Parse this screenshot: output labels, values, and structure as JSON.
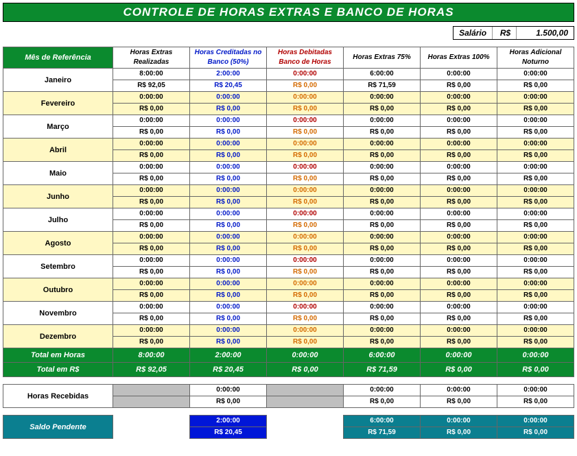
{
  "title": "CONTROLE DE HORAS EXTRAS E BANCO DE HORAS",
  "salary": {
    "label": "Salário",
    "currency": "R$",
    "value": "1.500,00"
  },
  "headers": {
    "ref": "Mês de Referência",
    "cols": [
      {
        "l1": "Horas Extras",
        "l2": "Realizadas",
        "color": "black"
      },
      {
        "l1": "Horas Creditadas no",
        "l2": "Banco (50%)",
        "color": "blue"
      },
      {
        "l1": "Horas Debitadas",
        "l2": "Banco de Horas",
        "color": "red"
      },
      {
        "l1": "Horas Extras 75%",
        "l2": "",
        "color": "black"
      },
      {
        "l1": "Horas Extras 100%",
        "l2": "",
        "color": "black"
      },
      {
        "l1": "Horas Adicional",
        "l2": "Noturno",
        "color": "black"
      }
    ]
  },
  "months": [
    {
      "name": "Janeiro",
      "alt": false,
      "t": [
        "8:00:00",
        "2:00:00",
        "0:00:00",
        "6:00:00",
        "0:00:00",
        "0:00:00"
      ],
      "r": [
        "R$ 92,05",
        "R$ 20,45",
        "R$ 0,00",
        "R$ 71,59",
        "R$ 0,00",
        "R$ 0,00"
      ]
    },
    {
      "name": "Fevereiro",
      "alt": true,
      "t": [
        "0:00:00",
        "0:00:00",
        "0:00:00",
        "0:00:00",
        "0:00:00",
        "0:00:00"
      ],
      "r": [
        "R$ 0,00",
        "R$ 0,00",
        "R$ 0,00",
        "R$ 0,00",
        "R$ 0,00",
        "R$ 0,00"
      ]
    },
    {
      "name": "Março",
      "alt": false,
      "t": [
        "0:00:00",
        "0:00:00",
        "0:00:00",
        "0:00:00",
        "0:00:00",
        "0:00:00"
      ],
      "r": [
        "R$ 0,00",
        "R$ 0,00",
        "R$ 0,00",
        "R$ 0,00",
        "R$ 0,00",
        "R$ 0,00"
      ]
    },
    {
      "name": "Abril",
      "alt": true,
      "t": [
        "0:00:00",
        "0:00:00",
        "0:00:00",
        "0:00:00",
        "0:00:00",
        "0:00:00"
      ],
      "r": [
        "R$ 0,00",
        "R$ 0,00",
        "R$ 0,00",
        "R$ 0,00",
        "R$ 0,00",
        "R$ 0,00"
      ]
    },
    {
      "name": "Maio",
      "alt": false,
      "t": [
        "0:00:00",
        "0:00:00",
        "0:00:00",
        "0:00:00",
        "0:00:00",
        "0:00:00"
      ],
      "r": [
        "R$ 0,00",
        "R$ 0,00",
        "R$ 0,00",
        "R$ 0,00",
        "R$ 0,00",
        "R$ 0,00"
      ]
    },
    {
      "name": "Junho",
      "alt": true,
      "t": [
        "0:00:00",
        "0:00:00",
        "0:00:00",
        "0:00:00",
        "0:00:00",
        "0:00:00"
      ],
      "r": [
        "R$ 0,00",
        "R$ 0,00",
        "R$ 0,00",
        "R$ 0,00",
        "R$ 0,00",
        "R$ 0,00"
      ]
    },
    {
      "name": "Julho",
      "alt": false,
      "t": [
        "0:00:00",
        "0:00:00",
        "0:00:00",
        "0:00:00",
        "0:00:00",
        "0:00:00"
      ],
      "r": [
        "R$ 0,00",
        "R$ 0,00",
        "R$ 0,00",
        "R$ 0,00",
        "R$ 0,00",
        "R$ 0,00"
      ]
    },
    {
      "name": "Agosto",
      "alt": true,
      "t": [
        "0:00:00",
        "0:00:00",
        "0:00:00",
        "0:00:00",
        "0:00:00",
        "0:00:00"
      ],
      "r": [
        "R$ 0,00",
        "R$ 0,00",
        "R$ 0,00",
        "R$ 0,00",
        "R$ 0,00",
        "R$ 0,00"
      ]
    },
    {
      "name": "Setembro",
      "alt": false,
      "t": [
        "0:00:00",
        "0:00:00",
        "0:00:00",
        "0:00:00",
        "0:00:00",
        "0:00:00"
      ],
      "r": [
        "R$ 0,00",
        "R$ 0,00",
        "R$ 0,00",
        "R$ 0,00",
        "R$ 0,00",
        "R$ 0,00"
      ]
    },
    {
      "name": "Outubro",
      "alt": true,
      "t": [
        "0:00:00",
        "0:00:00",
        "0:00:00",
        "0:00:00",
        "0:00:00",
        "0:00:00"
      ],
      "r": [
        "R$ 0,00",
        "R$ 0,00",
        "R$ 0,00",
        "R$ 0,00",
        "R$ 0,00",
        "R$ 0,00"
      ]
    },
    {
      "name": "Novembro",
      "alt": false,
      "t": [
        "0:00:00",
        "0:00:00",
        "0:00:00",
        "0:00:00",
        "0:00:00",
        "0:00:00"
      ],
      "r": [
        "R$ 0,00",
        "R$ 0,00",
        "R$ 0,00",
        "R$ 0,00",
        "R$ 0,00",
        "R$ 0,00"
      ]
    },
    {
      "name": "Dezembro",
      "alt": true,
      "t": [
        "0:00:00",
        "0:00:00",
        "0:00:00",
        "0:00:00",
        "0:00:00",
        "0:00:00"
      ],
      "r": [
        "R$ 0,00",
        "R$ 0,00",
        "R$ 0,00",
        "R$ 0,00",
        "R$ 0,00",
        "R$ 0,00"
      ]
    }
  ],
  "col_time_colors": [
    "black",
    "blue",
    "red",
    "black",
    "black",
    "black"
  ],
  "col_money_colors": [
    "black",
    "blue",
    "orange",
    "black",
    "black",
    "black"
  ],
  "alt_time_override": {
    "2": "orange"
  },
  "totals": {
    "hours_label": "Total em Horas",
    "rs_label": "Total em R$",
    "hours": [
      "8:00:00",
      "2:00:00",
      "0:00:00",
      "6:00:00",
      "0:00:00",
      "0:00:00"
    ],
    "rs": [
      "R$ 92,05",
      "R$ 20,45",
      "R$ 0,00",
      "R$ 71,59",
      "R$ 0,00",
      "R$ 0,00"
    ],
    "hours_colors": [
      "white",
      "blue",
      "red",
      "white",
      "white",
      "white"
    ],
    "rs_colors": [
      "white",
      "blue",
      "orange",
      "white",
      "white",
      "white"
    ]
  },
  "received": {
    "label": "Horas Recebidas",
    "t": [
      "",
      "0:00:00",
      "",
      "0:00:00",
      "0:00:00",
      "0:00:00"
    ],
    "r": [
      "",
      "R$ 0,00",
      "",
      "R$ 0,00",
      "R$ 0,00",
      "R$ 0,00"
    ],
    "gray_cols": [
      0,
      2
    ]
  },
  "saldo": {
    "label": "Saldo Pendente",
    "t": [
      "",
      "2:00:00",
      "",
      "6:00:00",
      "0:00:00",
      "0:00:00"
    ],
    "r": [
      "",
      "R$ 20,45",
      "",
      "R$ 71,59",
      "R$ 0,00",
      "R$ 0,00"
    ],
    "cell_style": [
      "empty",
      "blue",
      "empty",
      "teal",
      "teal",
      "teal"
    ]
  }
}
